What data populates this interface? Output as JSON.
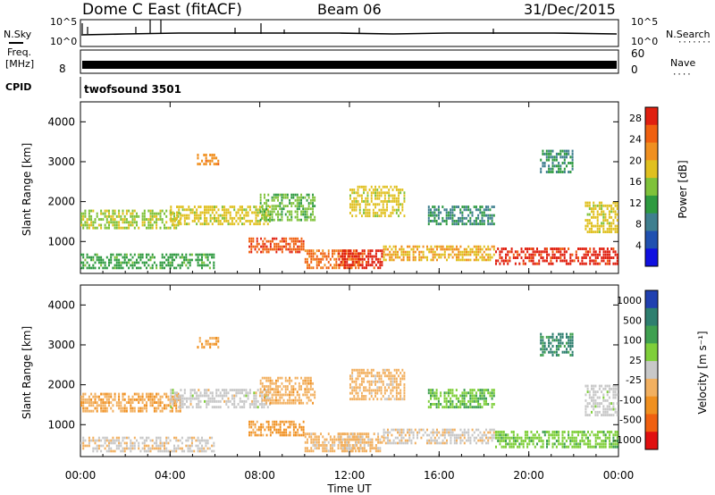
{
  "header": {
    "station": "Dome C East (fitACF)",
    "beam": "Beam 06",
    "date": "31/Dec/2015"
  },
  "status_panels": {
    "nsky": {
      "label": "N.Sky",
      "top_tick": "10^5",
      "bottom_tick": "10^0"
    },
    "nsearch": {
      "label": "N.Search",
      "top_tick": "10^5",
      "bottom_tick": "10^0"
    },
    "freq": {
      "label_line1": "Freq.",
      "label_line2": "[MHz]",
      "left_top": "",
      "left_bottom": "8"
    },
    "nave": {
      "label": "Nave",
      "right_top": "60",
      "right_bottom": "0"
    },
    "cpid": {
      "label": "CPID",
      "value": "twofsound 3501"
    }
  },
  "x_axis": {
    "label": "Time UT",
    "ticks": [
      "00:00",
      "04:00",
      "08:00",
      "12:00",
      "16:00",
      "20:00",
      "00:00"
    ],
    "range_hours": [
      0,
      24
    ]
  },
  "power_panel": {
    "y_label": "Slant Range [km]",
    "y_ticks": [
      "1000",
      "2000",
      "3000",
      "4000"
    ],
    "colorbar_label": "Power [dB]",
    "colorbar_ticks": [
      "4",
      "8",
      "12",
      "16",
      "20",
      "24",
      "28"
    ]
  },
  "velocity_panel": {
    "y_label": "Slant Range [km]",
    "y_ticks": [
      "1000",
      "2000",
      "3000",
      "4000"
    ],
    "colorbar_label": "Velocity  [m s⁻¹]",
    "colorbar_ticks": [
      "1000",
      "500",
      "100",
      "25",
      "-25",
      "-100",
      "-500",
      "-1000"
    ]
  },
  "chart_data": [
    {
      "type": "heatmap",
      "title": "Power",
      "xlabel": "Time UT",
      "ylabel": "Slant Range [km]",
      "xlim": [
        0,
        24
      ],
      "ylim": [
        200,
        4500
      ],
      "colorbar": {
        "label": "Power [dB]",
        "range": [
          0,
          30
        ],
        "colors": [
          "#1010e0",
          "#2050b0",
          "#3f7f8f",
          "#2e9a40",
          "#7fc23a",
          "#e0c020",
          "#f09020",
          "#f06010",
          "#e02010"
        ]
      },
      "regions": [
        {
          "t": [
            0.0,
            6.0
          ],
          "r": [
            300,
            700
          ],
          "level": 12
        },
        {
          "t": [
            0.0,
            4.5
          ],
          "r": [
            1300,
            1800
          ],
          "level": 16
        },
        {
          "t": [
            4.0,
            8.5
          ],
          "r": [
            1400,
            1900
          ],
          "level": 18
        },
        {
          "t": [
            5.2,
            6.2
          ],
          "r": [
            2900,
            3200
          ],
          "level": 22
        },
        {
          "t": [
            7.5,
            10.0
          ],
          "r": [
            700,
            1100
          ],
          "level": 26
        },
        {
          "t": [
            8.0,
            10.5
          ],
          "r": [
            1500,
            2200
          ],
          "level": 14
        },
        {
          "t": [
            10.0,
            12.5
          ],
          "r": [
            300,
            800
          ],
          "level": 24
        },
        {
          "t": [
            11.5,
            13.5
          ],
          "r": [
            300,
            800
          ],
          "level": 28
        },
        {
          "t": [
            12.0,
            14.5
          ],
          "r": [
            1600,
            2400
          ],
          "level": 18
        },
        {
          "t": [
            13.5,
            18.5
          ],
          "r": [
            500,
            900
          ],
          "level": 20
        },
        {
          "t": [
            15.5,
            18.5
          ],
          "r": [
            1400,
            1900
          ],
          "level": 10
        },
        {
          "t": [
            18.5,
            24.0
          ],
          "r": [
            400,
            850
          ],
          "level": 28
        },
        {
          "t": [
            20.5,
            22.0
          ],
          "r": [
            2700,
            3300
          ],
          "level": 10
        },
        {
          "t": [
            22.5,
            24.0
          ],
          "r": [
            1200,
            2000
          ],
          "level": 18
        }
      ]
    },
    {
      "type": "heatmap",
      "title": "Velocity",
      "xlabel": "Time UT",
      "ylabel": "Slant Range [km]",
      "xlim": [
        0,
        24
      ],
      "ylim": [
        200,
        4500
      ],
      "colorbar": {
        "label": "Velocity [m s⁻¹]",
        "range": [
          -1000,
          1000
        ],
        "colors": [
          "#e01010",
          "#f06010",
          "#f09020",
          "#f2b060",
          "#c8c8c8",
          "#7fcf3a",
          "#3fa050",
          "#2e7f6f",
          "#2040b0"
        ]
      },
      "regions": [
        {
          "t": [
            0.0,
            6.0
          ],
          "r": [
            300,
            700
          ],
          "level": -80
        },
        {
          "t": [
            0.0,
            4.5
          ],
          "r": [
            1300,
            1800
          ],
          "level": -300
        },
        {
          "t": [
            4.0,
            8.5
          ],
          "r": [
            1400,
            1900
          ],
          "level": 0
        },
        {
          "t": [
            5.2,
            6.2
          ],
          "r": [
            2900,
            3200
          ],
          "level": -300
        },
        {
          "t": [
            7.5,
            10.0
          ],
          "r": [
            700,
            1100
          ],
          "level": -400
        },
        {
          "t": [
            8.0,
            10.5
          ],
          "r": [
            1500,
            2200
          ],
          "level": -250
        },
        {
          "t": [
            10.0,
            12.5
          ],
          "r": [
            300,
            800
          ],
          "level": -200
        },
        {
          "t": [
            11.5,
            13.5
          ],
          "r": [
            300,
            800
          ],
          "level": -150
        },
        {
          "t": [
            12.0,
            14.5
          ],
          "r": [
            1600,
            2400
          ],
          "level": -200
        },
        {
          "t": [
            13.5,
            18.5
          ],
          "r": [
            500,
            900
          ],
          "level": -60
        },
        {
          "t": [
            15.5,
            18.5
          ],
          "r": [
            1400,
            1900
          ],
          "level": 300
        },
        {
          "t": [
            18.5,
            24.0
          ],
          "r": [
            400,
            850
          ],
          "level": 250
        },
        {
          "t": [
            20.5,
            22.0
          ],
          "r": [
            2700,
            3300
          ],
          "level": 600
        },
        {
          "t": [
            22.5,
            24.0
          ],
          "r": [
            1200,
            2000
          ],
          "level": 10
        }
      ]
    }
  ]
}
